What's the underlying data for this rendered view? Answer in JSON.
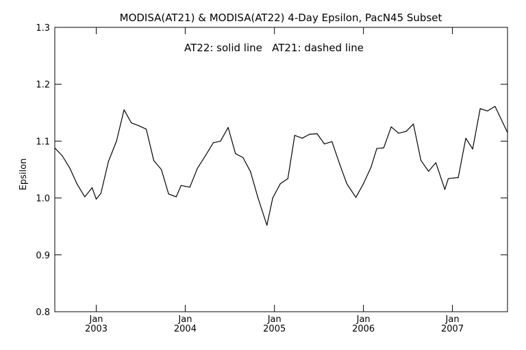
{
  "chart_data": {
    "type": "line",
    "title": "MODISA(AT21) & MODISA(AT22) 4-Day Epsilon, PacN45 Subset",
    "annotation": "AT22: solid line   AT21: dashed line",
    "xlabel": "",
    "ylabel": "Epsilon",
    "ylim": [
      0.8,
      1.3
    ],
    "yticks": [
      "0.8",
      "0.9",
      "1.0",
      "1.1",
      "1.2",
      "1.3"
    ],
    "xlim": [
      "2002-07-15",
      "2007-08-15"
    ],
    "xticks": [
      {
        "month": "Jan",
        "year": "2003",
        "date": "2003-01-01"
      },
      {
        "month": "Jan",
        "year": "2004",
        "date": "2004-01-01"
      },
      {
        "month": "Jan",
        "year": "2005",
        "date": "2005-01-01"
      },
      {
        "month": "Jan",
        "year": "2006",
        "date": "2006-01-01"
      },
      {
        "month": "Jan",
        "year": "2007",
        "date": "2007-01-01"
      }
    ],
    "grid": false,
    "series": [
      {
        "name": "AT22",
        "style": "solid",
        "color": "#000000",
        "points": [
          [
            "2002-07-15",
            1.088
          ],
          [
            "2002-08-15",
            1.074
          ],
          [
            "2002-09-15",
            1.052
          ],
          [
            "2002-10-15",
            1.024
          ],
          [
            "2002-11-15",
            1.002
          ],
          [
            "2002-12-15",
            1.018
          ],
          [
            "2003-01-01",
            0.998
          ],
          [
            "2003-01-20",
            1.008
          ],
          [
            "2003-02-20",
            1.064
          ],
          [
            "2003-03-25",
            1.1
          ],
          [
            "2003-04-25",
            1.155
          ],
          [
            "2003-05-25",
            1.132
          ],
          [
            "2003-06-25",
            1.127
          ],
          [
            "2003-07-25",
            1.121
          ],
          [
            "2003-08-25",
            1.066
          ],
          [
            "2003-09-25",
            1.05
          ],
          [
            "2003-10-25",
            1.007
          ],
          [
            "2003-11-25",
            1.002
          ],
          [
            "2003-12-15",
            1.022
          ],
          [
            "2004-01-20",
            1.019
          ],
          [
            "2004-02-20",
            1.052
          ],
          [
            "2004-03-25",
            1.075
          ],
          [
            "2004-04-25",
            1.097
          ],
          [
            "2004-05-25",
            1.1
          ],
          [
            "2004-06-25",
            1.124
          ],
          [
            "2004-07-25",
            1.078
          ],
          [
            "2004-08-25",
            1.071
          ],
          [
            "2004-09-25",
            1.046
          ],
          [
            "2004-10-25",
            1.001
          ],
          [
            "2004-12-01",
            0.952
          ],
          [
            "2004-12-25",
            1.0
          ],
          [
            "2005-01-25",
            1.025
          ],
          [
            "2005-02-25",
            1.034
          ],
          [
            "2005-03-25",
            1.11
          ],
          [
            "2005-04-25",
            1.105
          ],
          [
            "2005-05-25",
            1.112
          ],
          [
            "2005-06-25",
            1.113
          ],
          [
            "2005-07-25",
            1.095
          ],
          [
            "2005-08-25",
            1.099
          ],
          [
            "2005-09-25",
            1.06
          ],
          [
            "2005-10-25",
            1.025
          ],
          [
            "2005-12-01",
            1.001
          ],
          [
            "2006-01-01",
            1.025
          ],
          [
            "2006-02-01",
            1.054
          ],
          [
            "2006-02-25",
            1.087
          ],
          [
            "2006-03-25",
            1.088
          ],
          [
            "2006-04-25",
            1.125
          ],
          [
            "2006-05-25",
            1.114
          ],
          [
            "2006-06-25",
            1.117
          ],
          [
            "2006-07-25",
            1.13
          ],
          [
            "2006-08-25",
            1.066
          ],
          [
            "2006-09-25",
            1.047
          ],
          [
            "2006-10-25",
            1.062
          ],
          [
            "2006-12-01",
            1.015
          ],
          [
            "2006-12-15",
            1.034
          ],
          [
            "2007-01-25",
            1.036
          ],
          [
            "2007-02-25",
            1.105
          ],
          [
            "2007-03-25",
            1.086
          ],
          [
            "2007-04-25",
            1.157
          ],
          [
            "2007-05-25",
            1.153
          ],
          [
            "2007-06-25",
            1.161
          ],
          [
            "2007-08-15",
            1.115
          ]
        ]
      }
    ]
  }
}
